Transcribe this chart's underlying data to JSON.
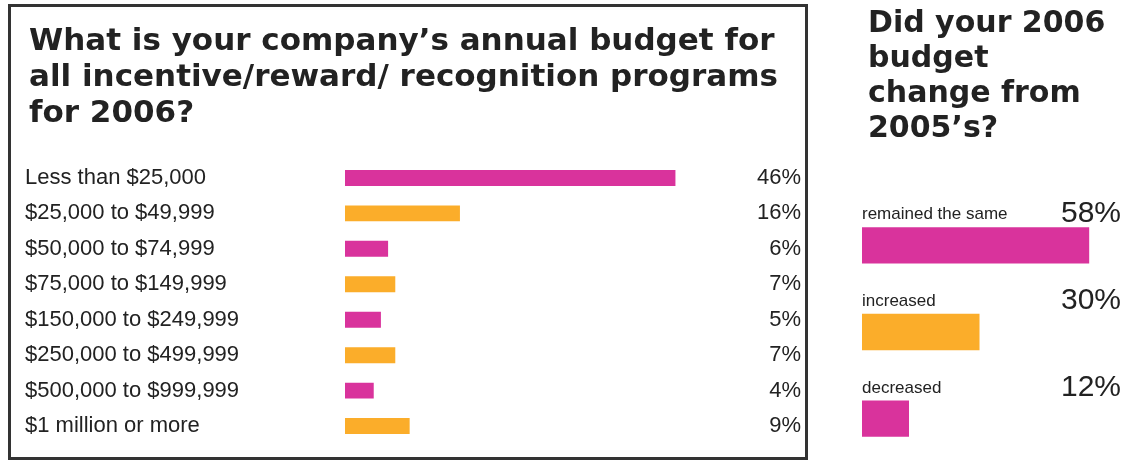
{
  "chart_data": [
    {
      "type": "bar",
      "orientation": "horizontal",
      "title": "What is your company’s annual budget for all incentive/reward/ recognition programs for 2006?",
      "categories": [
        "Less than $25,000",
        "$25,000 to $49,999",
        "$50,000 to $74,999",
        "$75,000 to $149,999",
        "$150,000 to $249,999",
        "$250,000 to $499,999",
        "$500,000 to $999,999",
        "$1 million or more"
      ],
      "values": [
        46,
        16,
        6,
        7,
        5,
        7,
        4,
        9
      ],
      "colors": [
        "#d9339c",
        "#fbad2a",
        "#d9339c",
        "#fbad2a",
        "#d9339c",
        "#fbad2a",
        "#d9339c",
        "#fbad2a"
      ],
      "value_labels": [
        "46%",
        "16%",
        "6%",
        "7%",
        "5%",
        "7%",
        "4%",
        "9%"
      ]
    },
    {
      "type": "bar",
      "orientation": "horizontal",
      "title": "Did your 2006 budget change from 2005’s?",
      "categories": [
        "remained the same",
        "increased",
        "decreased"
      ],
      "values": [
        58,
        30,
        12
      ],
      "colors": [
        "#d9339c",
        "#fbad2a",
        "#d9339c"
      ],
      "value_labels": [
        "58%",
        "30%",
        "12%"
      ]
    }
  ]
}
